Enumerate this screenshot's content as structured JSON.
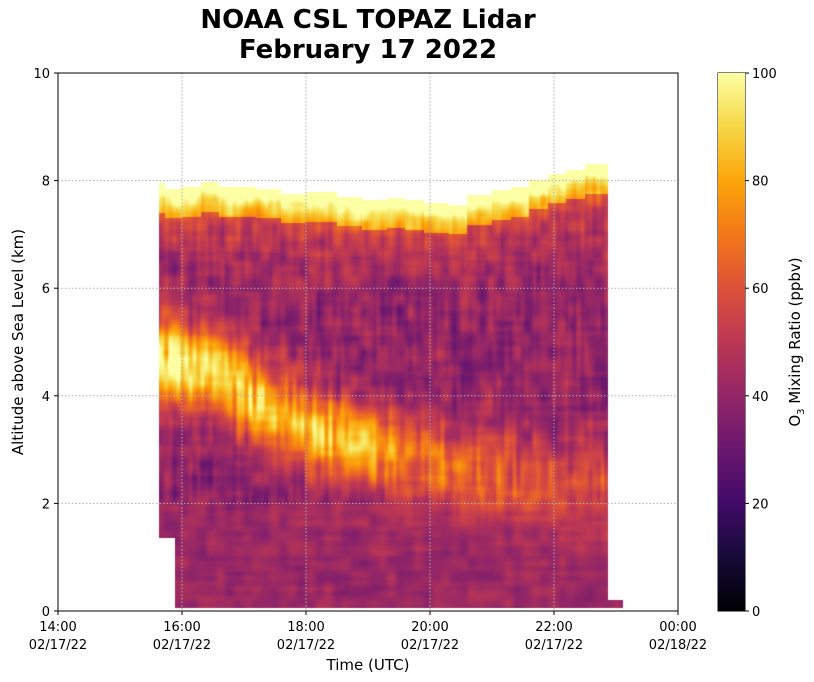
{
  "chart_data": {
    "type": "heatmap",
    "title_lines": [
      "NOAA CSL TOPAZ Lidar",
      "February 17 2022"
    ],
    "xlabel": "Time (UTC)",
    "ylabel": "Altitude above Sea Level (km)",
    "x_range_hours_utc": [
      14,
      24
    ],
    "ylim": [
      0,
      10
    ],
    "x_ticks": [
      {
        "hour": 14,
        "time": "14:00",
        "date": "02/17/22"
      },
      {
        "hour": 16,
        "time": "16:00",
        "date": "02/17/22"
      },
      {
        "hour": 18,
        "time": "18:00",
        "date": "02/17/22"
      },
      {
        "hour": 20,
        "time": "20:00",
        "date": "02/17/22"
      },
      {
        "hour": 22,
        "time": "22:00",
        "date": "02/17/22"
      },
      {
        "hour": 24,
        "time": "00:00",
        "date": "02/18/22"
      }
    ],
    "y_ticks": [
      0,
      2,
      4,
      6,
      8,
      10
    ],
    "grid": true,
    "colorbar": {
      "label_prefix": "O",
      "label_subscript": "3",
      "label_suffix": " Mixing Ratio (ppbv)",
      "colormap": "inferno",
      "range": [
        0,
        100
      ],
      "ticks": [
        0,
        20,
        40,
        60,
        80,
        100
      ],
      "placement": "right"
    },
    "data_extent": {
      "start_hour": 15.63,
      "lower_cutoff_start_hour": 15.88,
      "lower_cutoff_below_km": 1.35,
      "end_hour": 22.87,
      "bottom_extension_end_hour": 23.12,
      "bottom_extension_below_km": 0.2,
      "min_altitude_km": 0.05
    },
    "top_of_data_km": [
      {
        "hour": 15.63,
        "km": 7.95
      },
      {
        "hour": 15.72,
        "km": 7.85
      },
      {
        "hour": 16.0,
        "km": 7.88
      },
      {
        "hour": 16.3,
        "km": 7.97
      },
      {
        "hour": 16.6,
        "km": 7.88
      },
      {
        "hour": 17.2,
        "km": 7.85
      },
      {
        "hour": 17.6,
        "km": 7.76
      },
      {
        "hour": 18.0,
        "km": 7.78
      },
      {
        "hour": 18.5,
        "km": 7.7
      },
      {
        "hour": 18.9,
        "km": 7.64
      },
      {
        "hour": 19.3,
        "km": 7.67
      },
      {
        "hour": 19.6,
        "km": 7.64
      },
      {
        "hour": 19.9,
        "km": 7.58
      },
      {
        "hour": 20.3,
        "km": 7.55
      },
      {
        "hour": 20.6,
        "km": 7.73
      },
      {
        "hour": 21.0,
        "km": 7.82
      },
      {
        "hour": 21.3,
        "km": 7.88
      },
      {
        "hour": 21.6,
        "km": 8.02
      },
      {
        "hour": 21.9,
        "km": 8.13
      },
      {
        "hour": 22.2,
        "km": 8.2
      },
      {
        "hour": 22.5,
        "km": 8.3
      },
      {
        "hour": 22.87,
        "km": 8.3
      }
    ],
    "features": {
      "upper_boundary_layer": {
        "description": "high ozone (~90-100 ppbv) within ~0.6 km below top of data"
      },
      "elevated_plume": {
        "description": "bright ozone layer descending with time",
        "center_km": [
          {
            "hour": 15.63,
            "km": 4.7
          },
          {
            "hour": 16.5,
            "km": 4.4
          },
          {
            "hour": 17.5,
            "km": 3.7
          },
          {
            "hour": 18.5,
            "km": 3.2
          },
          {
            "hour": 19.5,
            "km": 2.9
          },
          {
            "hour": 20.5,
            "km": 2.65
          },
          {
            "hour": 21.5,
            "km": 2.45
          },
          {
            "hour": 22.87,
            "km": 2.2
          }
        ],
        "peak_ppbv": [
          {
            "hour": 15.63,
            "value": 95
          },
          {
            "hour": 16.5,
            "value": 92
          },
          {
            "hour": 17.5,
            "value": 85
          },
          {
            "hour": 18.5,
            "value": 82
          },
          {
            "hour": 19.5,
            "value": 76
          },
          {
            "hour": 20.5,
            "value": 68
          },
          {
            "hour": 21.5,
            "value": 62
          },
          {
            "hour": 22.87,
            "value": 58
          }
        ]
      },
      "background_free_troposphere_ppbv": 40,
      "boundary_layer_ppbv": 42
    }
  }
}
